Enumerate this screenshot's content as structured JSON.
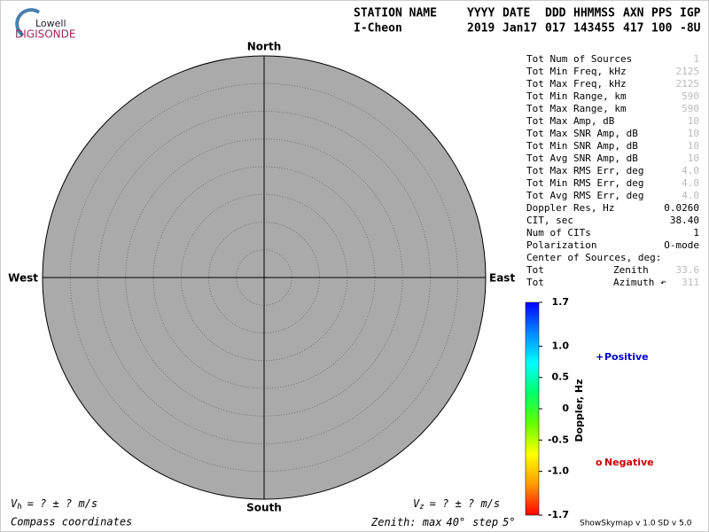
{
  "logo": {
    "line1": "Lowell",
    "line2": "DIGISONDE"
  },
  "header": {
    "columns": [
      "STATION NAME",
      "YYYY",
      "DATE",
      "DDD",
      "HHMMSS",
      "AXN",
      "PPS",
      "IGP"
    ],
    "values": [
      "I-Cheon",
      "2019",
      "Jan17",
      "017",
      "143455",
      "417",
      "100",
      "-8U"
    ]
  },
  "compass": {
    "north": "North",
    "south": "South",
    "east": "East",
    "west": "West"
  },
  "zenith": {
    "prefix": "Zenith: max",
    "max": {
      "value": 40,
      "label": "40°"
    },
    "step_word": "step",
    "step": {
      "value": 5,
      "label": "5°"
    }
  },
  "stats": [
    {
      "label": "Tot Num of Sources",
      "value": "1",
      "dim": true
    },
    {
      "label": "Tot Min Freq, kHz",
      "value": "2125",
      "dim": true
    },
    {
      "label": "Tot Max Freq, kHz",
      "value": "2125",
      "dim": true
    },
    {
      "label": "Tot Min Range, km",
      "value": "590",
      "dim": true
    },
    {
      "label": "Tot Max Range, km",
      "value": "590",
      "dim": true
    },
    {
      "label": "Tot Max Amp, dB",
      "value": "10",
      "dim": true
    },
    {
      "label": "Tot Max SNR Amp, dB",
      "value": "10",
      "dim": true
    },
    {
      "label": "Tot Min SNR Amp, dB",
      "value": "10",
      "dim": true
    },
    {
      "label": "Tot Avg SNR Amp, dB",
      "value": "10",
      "dim": true
    },
    {
      "label": "Tot Max RMS Err, deg",
      "value": "4.0",
      "dim": true
    },
    {
      "label": "Tot Min RMS Err, deg",
      "value": "4.0",
      "dim": true
    },
    {
      "label": "Tot Avg RMS Err, deg",
      "value": "4.0",
      "dim": true
    },
    {
      "label": "Doppler Res, Hz",
      "value": "0.0260",
      "dim": false
    },
    {
      "label": "CIT, sec",
      "value": "38.40",
      "dim": false
    },
    {
      "label": "Num of CITs",
      "value": "1",
      "dim": false
    },
    {
      "label": "Polarization",
      "value": "O-mode",
      "dim": false
    },
    {
      "label": "Center of Sources, deg:"
    },
    {
      "label": "Tot",
      "mid": "Zenith",
      "value": "33.6",
      "dim": true
    },
    {
      "label": "Tot",
      "mid": "Azimuth ↶",
      "value": "311",
      "dim": true
    }
  ],
  "colorbar": {
    "label": "Doppler, Hz",
    "ylim": [
      -1.7,
      1.7
    ],
    "yticks": [
      1.7,
      {
        "value": 1,
        "label": "1.0"
      },
      0.5,
      0,
      -0.5,
      {
        "value": -1,
        "label": "-1.0"
      },
      -1.7
    ],
    "colors": [
      "#0000ff",
      "#0088ff",
      "#00ffff",
      "#00ff66",
      "#66ff00",
      "#ffff00",
      "#ff9900",
      "#ff0000"
    ]
  },
  "legend": {
    "positive": {
      "symbol": "+",
      "text": "Positive",
      "color": "#0000cc"
    },
    "negative": {
      "symbol": "o",
      "text": "Negative",
      "color": "#cc0000"
    }
  },
  "velocity": {
    "vh": {
      "symbol": "V",
      "sub": "h",
      "text": "=  ? ±  ? m/s"
    },
    "vz": {
      "symbol": "V",
      "sub": "z",
      "text": "=  ? ±  ? m/s"
    }
  },
  "footer": {
    "coords": "Compass coordinates",
    "version": "ShowSkymap v 1.0  SD v 5.0"
  }
}
